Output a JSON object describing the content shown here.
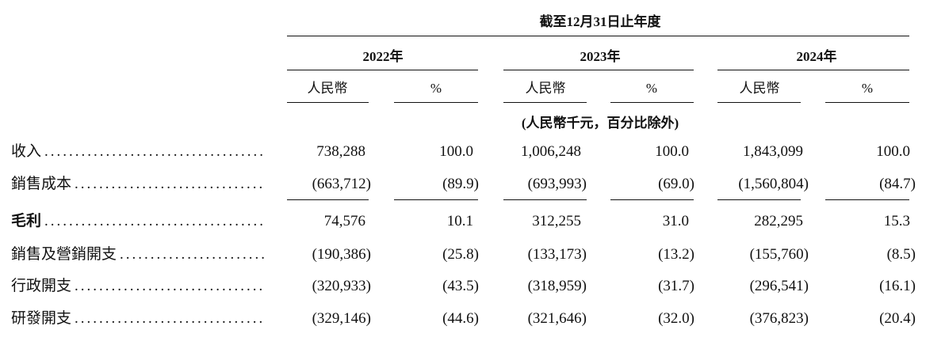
{
  "table": {
    "period_header": "截至12月31日止年度",
    "years": [
      "2022年",
      "2023年",
      "2024年"
    ],
    "subheaders": [
      "人民幣",
      "%",
      "人民幣",
      "%",
      "人民幣",
      "%"
    ],
    "unit_note": "(人民幣千元，百分比除外)",
    "rows": [
      {
        "label": "收入",
        "values": [
          "738,288",
          "100.0",
          "1,006,248",
          "100.0",
          "1,843,099",
          "100.0"
        ]
      },
      {
        "label": "銷售成本",
        "values": [
          "(663,712)",
          "(89.9)",
          "(693,993)",
          "(69.0)",
          "(1,560,804)",
          "(84.7)"
        ]
      },
      {
        "label": "毛利",
        "values": [
          "74,576",
          "10.1",
          "312,255",
          "31.0",
          "282,295",
          "15.3"
        ]
      },
      {
        "label": "銷售及營銷開支",
        "values": [
          "(190,386)",
          "(25.8)",
          "(133,173)",
          "(13.2)",
          "(155,760)",
          "(8.5)"
        ]
      },
      {
        "label": "行政開支",
        "values": [
          "(320,933)",
          "(43.5)",
          "(318,959)",
          "(31.7)",
          "(296,541)",
          "(16.1)"
        ]
      },
      {
        "label": "研發開支",
        "values": [
          "(329,146)",
          "(44.6)",
          "(321,646)",
          "(32.0)",
          "(376,823)",
          "(20.4)"
        ]
      }
    ]
  }
}
